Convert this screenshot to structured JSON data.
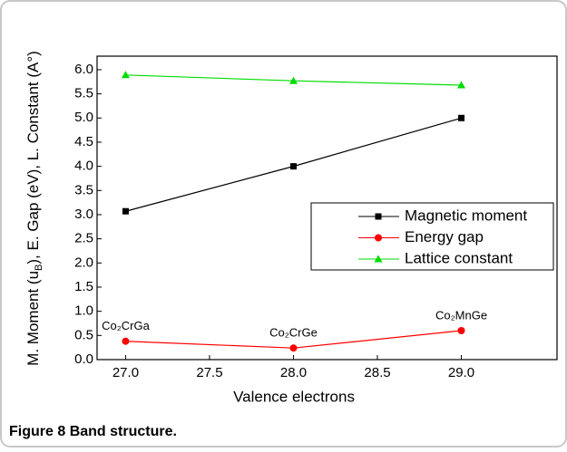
{
  "chart_data": {
    "type": "line",
    "y_label": [
      "M. Moment (u",
      "B",
      "), E. Gap (eV), L. Constant (A°)"
    ],
    "x_label": "Valence electrons",
    "x": [
      27.0,
      28.0,
      29.0
    ],
    "series": [
      {
        "name": "Magnetic moment",
        "color": "#000000",
        "marker": "square",
        "values": [
          3.07,
          4.0,
          5.0
        ]
      },
      {
        "name": "Energy gap",
        "color": "#ff0000",
        "marker": "circle",
        "values": [
          0.38,
          0.24,
          0.6
        ]
      },
      {
        "name": "Lattice constant",
        "color": "#00dd00",
        "marker": "triangle",
        "values": [
          5.89,
          5.77,
          5.68
        ]
      }
    ],
    "annotations": [
      "Co₂CrGa",
      "Co₂CrGe",
      "Co₂MnGe"
    ],
    "xlim": [
      26.83,
      29.57
    ],
    "xticks": [
      {
        "value": 27,
        "label": "27.0"
      },
      27.5,
      {
        "value": 28,
        "label": "28.0"
      },
      28.5,
      {
        "value": 29,
        "label": "29.0"
      }
    ],
    "ylim": [
      0,
      6.28
    ],
    "yticks": [
      {
        "value": 0,
        "label": "0.0"
      },
      0.5,
      {
        "value": 1,
        "label": "1.0"
      },
      1.5,
      {
        "value": 2,
        "label": "2.0"
      },
      2.5,
      {
        "value": 3,
        "label": "3.0"
      },
      3.5,
      {
        "value": 4,
        "label": "4.0"
      },
      4.5,
      {
        "value": 5,
        "label": "5.0"
      },
      5.5,
      {
        "value": 6,
        "label": "6.0"
      }
    ],
    "caption": {
      "label": "Figure 8",
      "text": "Band structure."
    }
  }
}
